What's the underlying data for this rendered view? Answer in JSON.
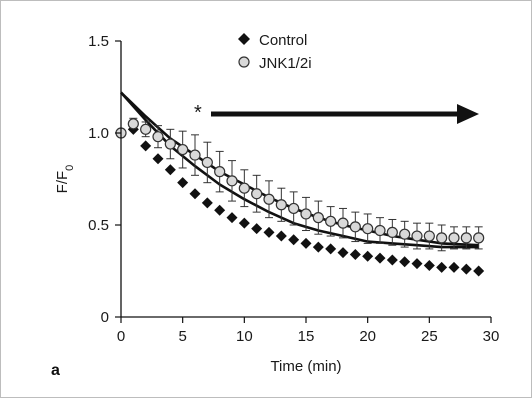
{
  "panel_label": "a",
  "chart_data": {
    "type": "scatter",
    "xlabel": "Time (min)",
    "ylabel": "F/F0",
    "xlim": [
      0,
      30
    ],
    "ylim": [
      0,
      1.5
    ],
    "x_ticks": [
      "0",
      "5",
      "10",
      "15",
      "20",
      "25",
      "30"
    ],
    "y_ticks": [
      "0",
      "0.5",
      "1.0",
      "1.5"
    ],
    "grid": false,
    "legend_position": "top-center",
    "annotation": "*",
    "series": [
      {
        "name": "Control",
        "marker": "filled-diamond",
        "color": "#111111",
        "x": [
          0,
          1,
          2,
          3,
          4,
          5,
          6,
          7,
          8,
          9,
          10,
          11,
          12,
          13,
          14,
          15,
          16,
          17,
          18,
          19,
          20,
          21,
          22,
          23,
          24,
          25,
          26,
          27,
          28,
          29
        ],
        "y": [
          1.0,
          1.02,
          0.93,
          0.86,
          0.8,
          0.73,
          0.67,
          0.62,
          0.58,
          0.54,
          0.51,
          0.48,
          0.46,
          0.44,
          0.42,
          0.4,
          0.38,
          0.37,
          0.35,
          0.34,
          0.33,
          0.32,
          0.31,
          0.3,
          0.29,
          0.28,
          0.27,
          0.27,
          0.26,
          0.25
        ]
      },
      {
        "name": "JNK1/2i",
        "marker": "open-circle",
        "color": "#d9d9d9",
        "x": [
          0,
          1,
          2,
          3,
          4,
          5,
          6,
          7,
          8,
          9,
          10,
          11,
          12,
          13,
          14,
          15,
          16,
          17,
          18,
          19,
          20,
          21,
          22,
          23,
          24,
          25,
          26,
          27,
          28,
          29
        ],
        "y": [
          1.0,
          1.05,
          1.02,
          0.98,
          0.94,
          0.91,
          0.88,
          0.84,
          0.79,
          0.74,
          0.7,
          0.67,
          0.64,
          0.61,
          0.59,
          0.56,
          0.54,
          0.52,
          0.51,
          0.49,
          0.48,
          0.47,
          0.46,
          0.45,
          0.44,
          0.44,
          0.43,
          0.43,
          0.43,
          0.43
        ],
        "err": [
          0,
          0.03,
          0.04,
          0.06,
          0.08,
          0.1,
          0.11,
          0.11,
          0.11,
          0.11,
          0.1,
          0.1,
          0.1,
          0.09,
          0.09,
          0.09,
          0.09,
          0.08,
          0.08,
          0.08,
          0.08,
          0.07,
          0.07,
          0.07,
          0.07,
          0.07,
          0.07,
          0.06,
          0.06,
          0.06
        ]
      }
    ],
    "fits": [
      {
        "series": "Control",
        "x": [
          0,
          2,
          4,
          6,
          8,
          10,
          12,
          14,
          16,
          18,
          20,
          22,
          24,
          26,
          29
        ],
        "y": [
          1.22,
          1.07,
          0.93,
          0.82,
          0.72,
          0.64,
          0.57,
          0.51,
          0.47,
          0.44,
          0.41,
          0.4,
          0.39,
          0.38,
          0.38
        ]
      },
      {
        "series": "JNK1/2i",
        "x": [
          0,
          2,
          4,
          6,
          8,
          10,
          12,
          14,
          16,
          18,
          20,
          22,
          24,
          26,
          29
        ],
        "y": [
          1.22,
          1.09,
          0.97,
          0.88,
          0.79,
          0.72,
          0.65,
          0.59,
          0.54,
          0.5,
          0.47,
          0.44,
          0.42,
          0.4,
          0.39
        ]
      }
    ]
  }
}
